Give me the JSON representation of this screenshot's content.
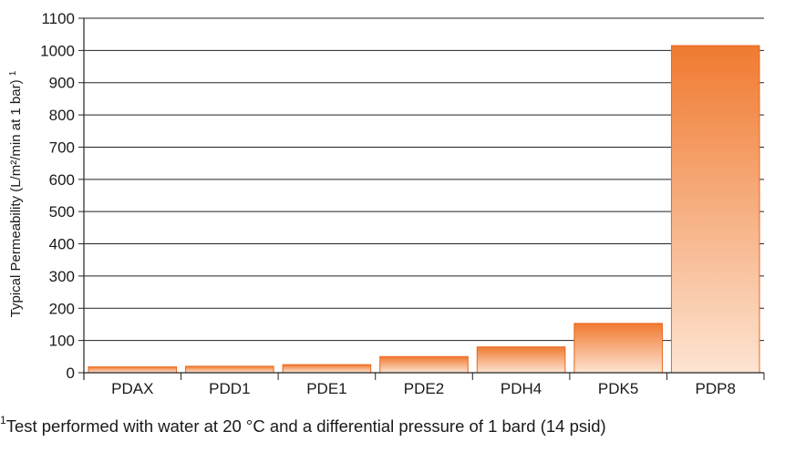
{
  "chart_data": {
    "type": "bar",
    "categories": [
      "PDAX",
      "PDD1",
      "PDE1",
      "PDE2",
      "PDH4",
      "PDK5",
      "PDP8"
    ],
    "values": [
      18,
      20,
      25,
      50,
      80,
      153,
      1015
    ],
    "ylabel": "Typical Permeability (L/m²/min at 1 bar)",
    "ylabel_footnote_mark": "1",
    "ylim": [
      0,
      1100
    ],
    "yticks": [
      0,
      100,
      200,
      300,
      400,
      500,
      600,
      700,
      800,
      900,
      1000,
      1100
    ],
    "grid": true,
    "bar_color_top": "#f07a30",
    "bar_color_bottom": "#fde4d2",
    "bar_edge_color": "#e8661f"
  },
  "footnote": {
    "mark": "1",
    "text": "Test performed with water at 20 °C and a differential pressure of 1 bard (14 psid)"
  }
}
